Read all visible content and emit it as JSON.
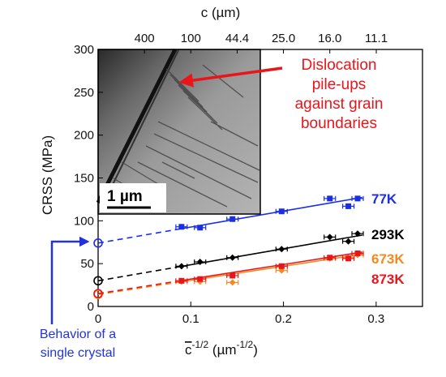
{
  "chart_data": {
    "type": "scatter",
    "xlabel_base": "c",
    "xlabel_exp": "-1/2",
    "xlabel_unit_open": " (µm",
    "xlabel_unit_exp": "-1/2",
    "xlabel_unit_close": ")",
    "ylabel": "CRSS (MPa)",
    "top_axis_label": "c (µm)",
    "xlim": [
      0,
      0.35
    ],
    "ylim": [
      0,
      300
    ],
    "x_ticks": [
      "0",
      "0.1",
      "0.2",
      "0.3"
    ],
    "y_ticks": [
      "0",
      "50",
      "100",
      "150",
      "200",
      "250",
      "300"
    ],
    "top_ticks": [
      "400",
      "100",
      "44.4",
      "25.0",
      "16.0",
      "11.1"
    ],
    "series": [
      {
        "name": "77K",
        "color": "#1a2ee6",
        "fit": {
          "intercept": 74,
          "slope": 187
        },
        "x": [
          0.09,
          0.11,
          0.145,
          0.198,
          0.25,
          0.27,
          0.28
        ],
        "y": [
          93,
          92,
          102,
          111,
          126,
          117,
          126
        ]
      },
      {
        "name": "293K",
        "color": "#000000",
        "fit": {
          "intercept": 30,
          "slope": 187
        },
        "x": [
          0.09,
          0.11,
          0.145,
          0.198,
          0.25,
          0.27,
          0.28
        ],
        "y": [
          47,
          52,
          57,
          67,
          81,
          76,
          85
        ]
      },
      {
        "name": "673K",
        "color": "#f5891f",
        "fit": {
          "intercept": 14,
          "slope": 165
        },
        "x": [
          0.09,
          0.11,
          0.145,
          0.198,
          0.25,
          0.27,
          0.28
        ],
        "y": [
          29,
          29,
          28,
          42,
          56,
          57,
          60
        ]
      },
      {
        "name": "873K",
        "color": "#e8161b",
        "fit": {
          "intercept": 15,
          "slope": 170
        },
        "x": [
          0.09,
          0.11,
          0.145,
          0.198,
          0.25,
          0.27,
          0.28
        ],
        "y": [
          30,
          32,
          36,
          47,
          57,
          56,
          62
        ]
      }
    ],
    "annotations": {
      "dislocation": [
        "Dislocation",
        "pile-ups",
        "against grain",
        "boundaries"
      ],
      "single_crystal": [
        "Behavior of a",
        "single crystal"
      ],
      "scale_bar": "1 µm"
    },
    "grid": false
  }
}
